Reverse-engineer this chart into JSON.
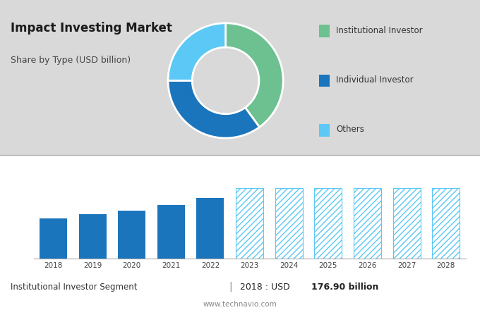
{
  "title": "Impact Investing Market",
  "subtitle": "Share by Type (USD billion)",
  "bg_color_top": "#d9d9d9",
  "bg_color_bottom": "#ffffff",
  "pie_values": [
    40,
    35,
    25
  ],
  "pie_colors": [
    "#6dc190",
    "#1b75bc",
    "#5bc8f5"
  ],
  "pie_labels": [
    "Institutional Investor",
    "Individual Investor",
    "Others"
  ],
  "bar_years": [
    2018,
    2019,
    2020,
    2021,
    2022,
    2023,
    2024,
    2025,
    2026,
    2027,
    2028
  ],
  "bar_values_solid": [
    176.9,
    195,
    210,
    235,
    265
  ],
  "bar_values_hatch": [
    310,
    310,
    310,
    310,
    310,
    310
  ],
  "bar_solid_color": "#1b75bc",
  "bar_hatch_facecolor": "#ffffff",
  "bar_hatch_edgecolor": "#5bc8f5",
  "bar_hatch_pattern": "////",
  "solid_years": [
    2018,
    2019,
    2020,
    2021,
    2022
  ],
  "hatch_years": [
    2023,
    2024,
    2025,
    2026,
    2027,
    2028
  ],
  "footer_left": "Institutional Investor Segment",
  "footer_sep": "|",
  "footer_right_prefix": "2018 : USD ",
  "footer_right_value": "176.90 billion",
  "footer_url": "www.technavio.com",
  "grid_color": "#cccccc",
  "title_fontsize": 12,
  "subtitle_fontsize": 9,
  "legend_fontsize": 8.5
}
